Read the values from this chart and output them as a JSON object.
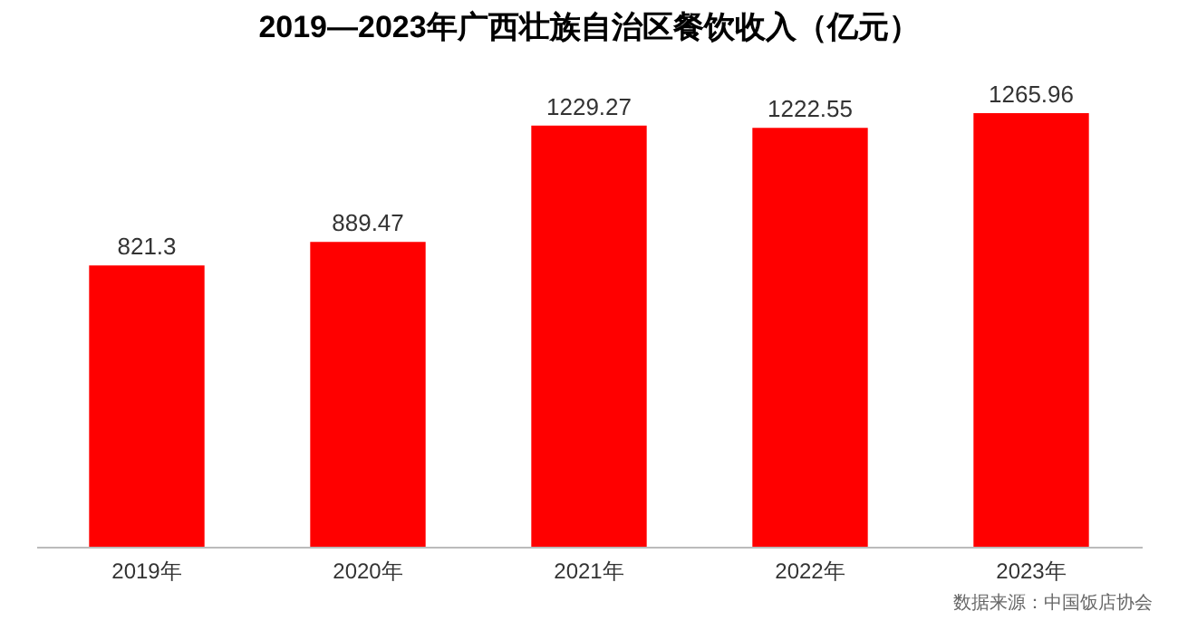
{
  "chart_data": {
    "type": "bar",
    "title": "2019—2023年广西壮族自治区餐饮收入（亿元）",
    "categories": [
      "2019年",
      "2020年",
      "2021年",
      "2022年",
      "2023年"
    ],
    "values": [
      821.3,
      889.47,
      1229.27,
      1222.55,
      1265.96
    ],
    "color": "#ff0000",
    "data_labels": true,
    "annotations": [
      "数据来源：中国饭店协会"
    ]
  }
}
